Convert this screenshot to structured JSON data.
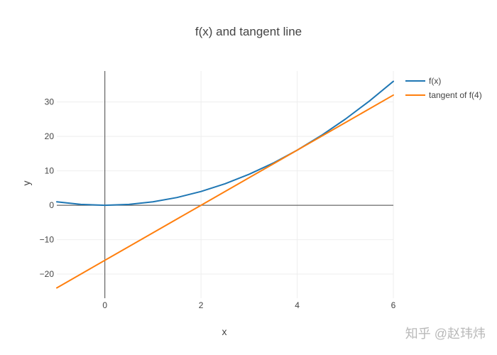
{
  "chart_data": {
    "type": "line",
    "title": "f(x) and tangent line",
    "xlabel": "x",
    "ylabel": "y",
    "xlim": [
      -1,
      6
    ],
    "ylim": [
      -27,
      39
    ],
    "x_ticks": [
      0,
      2,
      4,
      6
    ],
    "y_ticks": [
      -20,
      -10,
      0,
      10,
      20,
      30
    ],
    "grid": true,
    "legend_position": "top-right",
    "series": [
      {
        "name": "f(x)",
        "color": "#1f77b4",
        "x": [
          -1,
          -0.5,
          0,
          0.5,
          1,
          1.5,
          2,
          2.5,
          3,
          3.5,
          4,
          4.5,
          5,
          5.5,
          6
        ],
        "y": [
          1,
          0.25,
          0,
          0.25,
          1,
          2.25,
          4,
          6.25,
          9,
          12.25,
          16,
          20.25,
          25,
          30.25,
          36
        ]
      },
      {
        "name": "tangent of f(4)",
        "color": "#ff7f0e",
        "x": [
          -1,
          0,
          1,
          2,
          3,
          4,
          5,
          6
        ],
        "y": [
          -24,
          -16,
          -8,
          0,
          8,
          16,
          24,
          32
        ]
      }
    ]
  },
  "watermark": "知乎 @赵玮炜"
}
